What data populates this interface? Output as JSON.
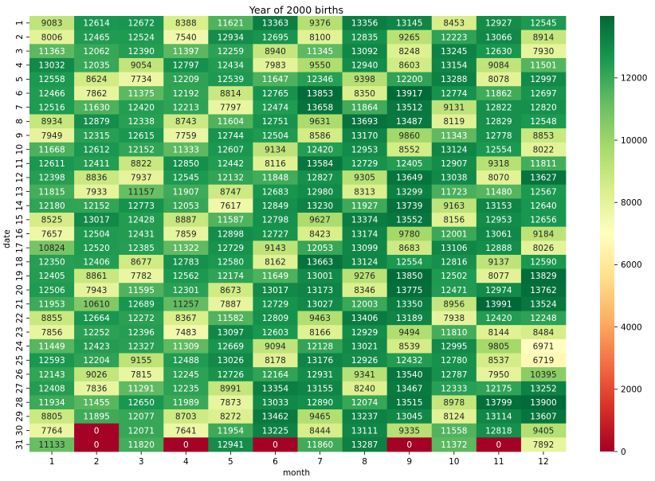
{
  "chart_data": {
    "type": "heatmap",
    "title": "Year of 2000 births",
    "xlabel": "month",
    "ylabel": "date",
    "x_categories": [
      "1",
      "2",
      "3",
      "4",
      "5",
      "6",
      "7",
      "8",
      "9",
      "10",
      "11",
      "12"
    ],
    "y_categories": [
      "1",
      "2",
      "3",
      "4",
      "5",
      "6",
      "7",
      "8",
      "9",
      "10",
      "11",
      "12",
      "13",
      "14",
      "15",
      "16",
      "17",
      "18",
      "19",
      "20",
      "21",
      "22",
      "23",
      "24",
      "25",
      "26",
      "27",
      "28",
      "29",
      "30",
      "31"
    ],
    "values": [
      [
        9083,
        12614,
        12672,
        8388,
        11621,
        13363,
        9376,
        13356,
        13145,
        8453,
        12927,
        12545
      ],
      [
        8006,
        12465,
        12524,
        7540,
        12934,
        12695,
        8100,
        12835,
        9265,
        12223,
        13066,
        8914
      ],
      [
        11363,
        12062,
        12390,
        11397,
        12259,
        8940,
        11345,
        13092,
        8248,
        13245,
        12630,
        7930
      ],
      [
        13032,
        12035,
        9054,
        12797,
        12434,
        7983,
        9550,
        12940,
        8603,
        13154,
        9084,
        11501
      ],
      [
        12558,
        8624,
        7734,
        12209,
        12539,
        11647,
        12346,
        9398,
        12200,
        13288,
        8078,
        12997
      ],
      [
        12466,
        7862,
        11375,
        12192,
        8814,
        12765,
        13853,
        8350,
        13917,
        12774,
        11862,
        12697
      ],
      [
        12516,
        11630,
        12420,
        12213,
        7797,
        12474,
        13658,
        11864,
        13512,
        9131,
        12822,
        12820
      ],
      [
        8934,
        12879,
        12338,
        8743,
        11604,
        12751,
        9631,
        13693,
        13487,
        8119,
        12829,
        12548
      ],
      [
        7949,
        12315,
        12615,
        7759,
        12744,
        12504,
        8586,
        13170,
        9860,
        11343,
        12778,
        8853
      ],
      [
        11668,
        12612,
        12152,
        11333,
        12607,
        9134,
        12420,
        12953,
        8552,
        13124,
        12554,
        8022
      ],
      [
        12611,
        12411,
        8822,
        12850,
        12442,
        8116,
        13584,
        12729,
        12405,
        12907,
        9318,
        11811
      ],
      [
        12398,
        8836,
        7937,
        12545,
        12132,
        11848,
        12827,
        9305,
        13649,
        13038,
        8070,
        13627
      ],
      [
        11815,
        7933,
        11157,
        11907,
        8747,
        12683,
        12980,
        8313,
        13299,
        11723,
        11480,
        12567
      ],
      [
        12180,
        12152,
        12773,
        12053,
        7617,
        12849,
        13230,
        11927,
        13739,
        9163,
        13153,
        12640
      ],
      [
        8525,
        13017,
        12428,
        8887,
        11587,
        12798,
        9627,
        13374,
        13552,
        8156,
        12953,
        12656
      ],
      [
        7657,
        12504,
        12431,
        7859,
        12898,
        12727,
        8423,
        13174,
        9780,
        12001,
        13061,
        9184
      ],
      [
        10824,
        12520,
        12385,
        11322,
        12729,
        9143,
        12053,
        13099,
        8683,
        13106,
        12888,
        8026
      ],
      [
        12350,
        12406,
        8677,
        12783,
        12580,
        8162,
        13663,
        13124,
        12554,
        12816,
        9137,
        12590
      ],
      [
        12405,
        8861,
        7782,
        12562,
        12174,
        11649,
        13001,
        9276,
        13850,
        12502,
        8077,
        13829
      ],
      [
        12506,
        7943,
        11595,
        12301,
        8673,
        13017,
        13173,
        8346,
        13775,
        12471,
        12974,
        13762
      ],
      [
        11953,
        10610,
        12689,
        11257,
        7887,
        12729,
        13027,
        12003,
        13350,
        8956,
        13991,
        13524
      ],
      [
        8855,
        12664,
        12272,
        8367,
        11582,
        12809,
        9463,
        13406,
        13189,
        7938,
        12420,
        12248
      ],
      [
        7856,
        12252,
        12396,
        7483,
        13097,
        12603,
        8166,
        12929,
        9494,
        11810,
        8144,
        8484
      ],
      [
        11449,
        12423,
        12327,
        11309,
        12669,
        9094,
        12128,
        13021,
        8539,
        12995,
        9805,
        6971
      ],
      [
        12593,
        12204,
        9155,
        12488,
        13026,
        8178,
        13176,
        12926,
        12432,
        12780,
        8537,
        6719
      ],
      [
        12143,
        9026,
        7815,
        12245,
        12726,
        12164,
        12931,
        9341,
        13540,
        12787,
        7950,
        10395
      ],
      [
        12408,
        7836,
        11291,
        12235,
        8991,
        13354,
        13155,
        8240,
        13467,
        12333,
        12175,
        13252
      ],
      [
        11934,
        11455,
        12650,
        11989,
        7873,
        13033,
        12890,
        12074,
        13515,
        8978,
        13799,
        13900
      ],
      [
        8805,
        11895,
        12077,
        8703,
        8272,
        13462,
        9465,
        13237,
        13045,
        8124,
        13114,
        13607
      ],
      [
        7764,
        0,
        12071,
        7641,
        11954,
        13225,
        8444,
        13111,
        9335,
        11558,
        12818,
        9405
      ],
      [
        11133,
        0,
        11820,
        0,
        12941,
        0,
        11860,
        13287,
        0,
        11372,
        0,
        7892
      ]
    ],
    "colorbar": {
      "vmin": 0,
      "vmax": 13991,
      "ticks": [
        "0",
        "2000",
        "4000",
        "6000",
        "8000",
        "10000",
        "12000"
      ],
      "tick_values": [
        0,
        2000,
        4000,
        6000,
        8000,
        10000,
        12000
      ],
      "colormap": "RdYlGn",
      "stops": [
        "#a50026",
        "#d73027",
        "#f46d43",
        "#fdae61",
        "#fee08b",
        "#ffffbf",
        "#d9ef8b",
        "#a6d96a",
        "#66bd63",
        "#1a9850",
        "#006837"
      ]
    },
    "grid": false,
    "legend": "colorbar-right"
  }
}
